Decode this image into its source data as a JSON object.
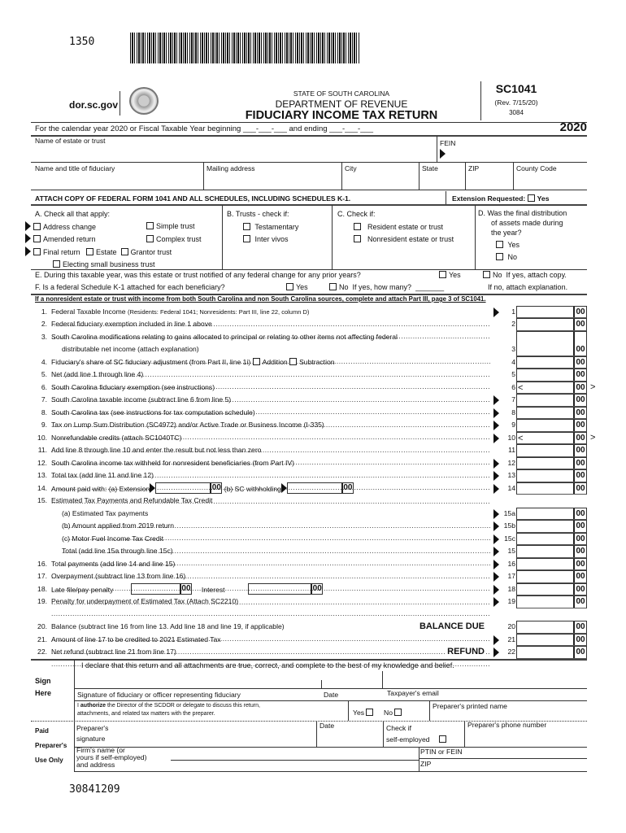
{
  "top_code": "1350",
  "bottom_code": "30841209",
  "header": {
    "website": "dor.sc.gov",
    "state": "STATE OF SOUTH CAROLINA",
    "department": "DEPARTMENT OF REVENUE",
    "title": "FIDUCIARY INCOME TAX RETURN",
    "form_number": "SC1041",
    "revision": "(Rev. 7/15/20)",
    "form_code": "3084",
    "year": "2020"
  },
  "tax_year_line": {
    "prefix": "For the calendar year 2020 or Fiscal Taxable Year beginning",
    "begin_blank": "___-___-___",
    "middle": "and ending",
    "end_blank": "___-___-___"
  },
  "fields": {
    "estate_name": "Name of estate or trust",
    "fein": "FEIN",
    "fiduciary_name": "Name and title of fiduciary",
    "mailing_address": "Mailing address",
    "city": "City",
    "state": "State",
    "zip": "ZIP",
    "county_code": "County Code"
  },
  "attach_notice": "ATTACH COPY OF FEDERAL FORM 1041 AND ALL SCHEDULES, INCLUDING SCHEDULES K-1.",
  "extension": {
    "label": "Extension Requested:",
    "yes": "Yes"
  },
  "section_a": {
    "heading": "A.  Check all that apply:",
    "address_change": "Address change",
    "simple_trust": "Simple trust",
    "amended_return": "Amended return",
    "complex_trust": "Complex trust",
    "final_return": "Final return",
    "estate": "Estate",
    "grantor_trust": "Grantor trust",
    "esbt": "Electing small business trust"
  },
  "section_b": {
    "heading": "B.  Trusts - check if:",
    "testamentary": "Testamentary",
    "inter_vivos": "Inter vivos"
  },
  "section_c": {
    "heading": "C.  Check if:",
    "resident": "Resident estate or trust",
    "nonresident": "Nonresident estate or trust"
  },
  "section_d": {
    "heading1": "D.  Was the final distribution",
    "heading2": "of assets made during",
    "heading3": "the year?",
    "yes": "Yes",
    "no": "No"
  },
  "question_e": {
    "text": "E.  During this taxable year, was this estate or trust notified of any federal change for any prior years?",
    "yes": "Yes",
    "no": "No",
    "note": "If yes, attach copy."
  },
  "question_f": {
    "text": "F.  Is a federal Schedule K-1 attached for each beneficiary?",
    "yes": "Yes",
    "no": "No",
    "how_many": "If yes, how many?",
    "blank": "_______",
    "note": "If no, attach explanation."
  },
  "nonresident_notice": "If a nonresident estate or trust with income from both South Carolina and non South Carolina sources, complete and attach Part III, page 3 of SC1041.",
  "cents": "00",
  "lines": [
    {
      "num": "1.",
      "text": "Federal Taxable Income",
      "small": "(Residents: Federal 1041; Nonresidents: Part III, line 22, column D)",
      "label": "1",
      "arrow": true
    },
    {
      "num": "2.",
      "text": "Federal fiduciary exemption included in line 1 above",
      "label": "2"
    },
    {
      "num": "3.",
      "text": "South Carolina modifications relating to gains allocated to principal or relating to other items not affecting federal",
      "text2": "distributable net income (attach explanation)",
      "label": "3"
    },
    {
      "num": "4.",
      "text": "Fiduciary's share of SC fiduciary adjustment (from Part II, line 1i)",
      "checks": [
        "Addition",
        "Subtraction"
      ],
      "label": "4"
    },
    {
      "num": "5.",
      "text": "Net (add line 1 through line 4)",
      "label": "5"
    },
    {
      "num": "6.",
      "text": "South Carolina fiduciary exemption (see instructions)",
      "label": "6",
      "brackets": true
    },
    {
      "num": "7.",
      "text": "South Carolina taxable income (subtract line 6 from line 5)",
      "label": "7",
      "arrow": true
    },
    {
      "num": "8.",
      "text": "South Carolina tax (see instructions for tax computation schedule)",
      "label": "8",
      "arrow": true
    },
    {
      "num": "9.",
      "text": "Tax on Lump Sum Distribution (SC4972) and/or Active Trade or Business Income (I-335)",
      "label": "9",
      "arrow": true
    },
    {
      "num": "10.",
      "text": "Nonrefundable credits (attach SC1040TC)",
      "label": "10",
      "arrow": true,
      "brackets": true
    },
    {
      "num": "11.",
      "text": "Add line 8 through line 10 and enter the result but not less than zero",
      "label": "11"
    },
    {
      "num": "12.",
      "text": "South Carolina income tax withheld for nonresident beneficiaries (from Part IV)",
      "label": "12",
      "arrow": true
    },
    {
      "num": "13.",
      "text": "Total tax (add line 11 and line 12)",
      "label": "13",
      "arrow": true
    },
    {
      "num": "14.",
      "text": "Amount paid with: (a) Extension",
      "inline": [
        "(b) SC withholding"
      ],
      "label": "14",
      "arrow": true
    },
    {
      "num": "15.",
      "text": "Estimated Tax Payments and Refundable Tax Credit",
      "header": true
    },
    {
      "num": "",
      "text": "(a) Estimated Tax payments",
      "label": "15a",
      "arrow": true
    },
    {
      "num": "",
      "text": "(b) Amount applied from 2019 return",
      "label": "15b",
      "arrow": true
    },
    {
      "num": "",
      "text": "(c) Motor Fuel Income Tax Credit",
      "label": "15c",
      "arrow": true
    },
    {
      "num": "",
      "text": "Total (add line 15a through line 15c)",
      "label": "15",
      "arrow": true
    },
    {
      "num": "16.",
      "text": "Total payments (add line 14 and line 15)",
      "label": "16",
      "arrow": true
    },
    {
      "num": "17.",
      "text": "Overpayment (subtract line 13 from line 16)",
      "label": "17",
      "arrow": true
    },
    {
      "num": "18.",
      "text": "Late file/pay penalty",
      "inline": [
        "Interest"
      ],
      "label": "18",
      "arrow": true
    },
    {
      "num": "19.",
      "text": "Penalty for underpayment of Estimated Tax (Attach SC2210)",
      "label": "19",
      "arrow": true
    },
    {
      "num": "20.",
      "text": "Balance (subtract line 16 from line 13. Add line 18 and line 19, if applicable)",
      "emph": "BALANCE DUE",
      "label": "20",
      "gap": true
    },
    {
      "num": "21.",
      "text": "Amount of line 17 to be credited to 2021 Estimated Tax",
      "label": "21",
      "arrow": true
    },
    {
      "num": "22.",
      "text": "Net refund (subtract line 21 from line 17)",
      "emph": "REFUND",
      "label": "22",
      "arrow": true
    }
  ],
  "signature": {
    "declaration": "I declare that this return and all attachments are true, correct, and complete to the best of my knowledge and belief.",
    "sign": "Sign",
    "here": "Here",
    "signature_label": "Signature of fiduciary or officer representing fiduciary",
    "date": "Date",
    "email": "Taxpayer's email",
    "authorize_pre": "I",
    "authorize_bold": "authorize",
    "authorize_rest": "the Director of the SCDOR or delegate to discuss this return,",
    "authorize_line2": "attachments, and related tax matters with the preparer.",
    "yes": "Yes",
    "no": "No",
    "preparer_name": "Preparer's printed name"
  },
  "preparer": {
    "paid": "Paid",
    "preparers": "Preparer's",
    "use_only": "Use Only",
    "signature1": "Preparer's",
    "signature2": "signature",
    "date": "Date",
    "check_if1": "Check if",
    "check_if2": "self-employed",
    "phone": "Preparer's phone number",
    "firm1": "Firm's name (or",
    "firm2": "yours if self-employed)",
    "firm3": "and address",
    "ptin": "PTIN or FEIN",
    "zip": "ZIP"
  }
}
